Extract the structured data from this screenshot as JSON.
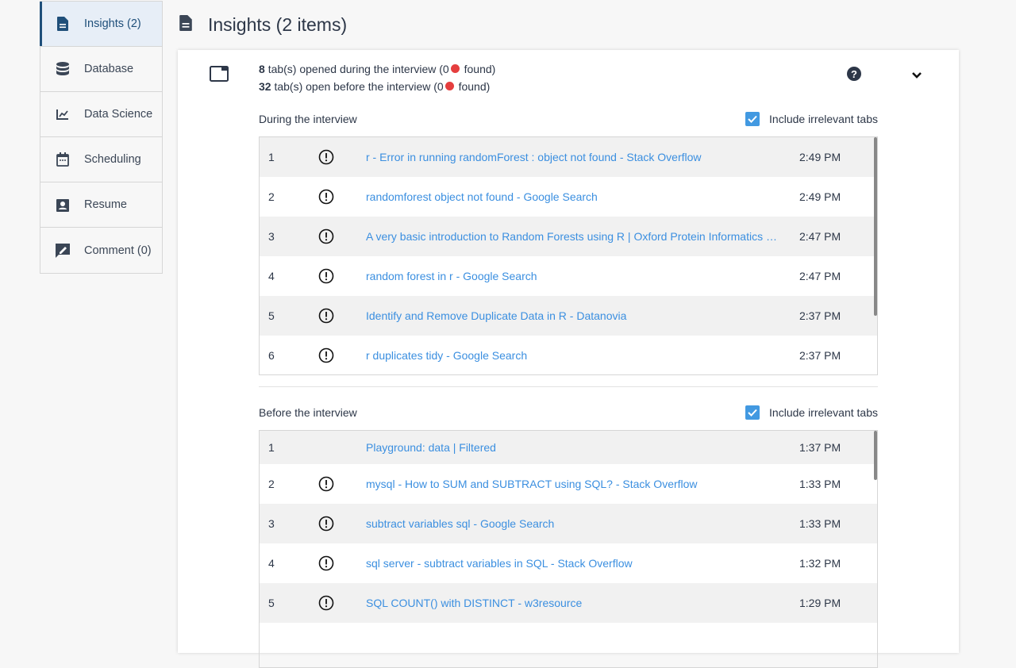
{
  "sidebar": {
    "items": [
      {
        "label": "Insights (2)",
        "icon": "file-icon"
      },
      {
        "label": "Database",
        "icon": "database-icon"
      },
      {
        "label": "Data Science",
        "icon": "chart-line-icon"
      },
      {
        "label": "Scheduling",
        "icon": "calendar-icon"
      },
      {
        "label": "Resume",
        "icon": "id-badge-icon"
      },
      {
        "label": "Comment (0)",
        "icon": "comment-edit-icon"
      }
    ]
  },
  "header": {
    "title": "Insights (2 items)"
  },
  "summary": {
    "during_count": "8",
    "during_text": "tab(s) opened during the interview (0",
    "during_found": "found)",
    "before_count": "32",
    "before_text": "tab(s) open before the interview (0",
    "before_found": "found)"
  },
  "during": {
    "label": "During the interview",
    "checkbox_label": "Include irrelevant tabs",
    "checked": true,
    "rows": [
      {
        "n": "1",
        "title": "r - Error in running randomForest : object not found - Stack Overflow",
        "time": "2:49 PM",
        "flag": true
      },
      {
        "n": "2",
        "title": "randomforest object not found - Google Search",
        "time": "2:49 PM",
        "flag": true
      },
      {
        "n": "3",
        "title": "A very basic introduction to Random Forests using R | Oxford Protein Informatics Group",
        "time": "2:47 PM",
        "flag": true
      },
      {
        "n": "4",
        "title": "random forest in r - Google Search",
        "time": "2:47 PM",
        "flag": true
      },
      {
        "n": "5",
        "title": "Identify and Remove Duplicate Data in R - Datanovia",
        "time": "2:37 PM",
        "flag": true
      },
      {
        "n": "6",
        "title": "r duplicates tidy - Google Search",
        "time": "2:37 PM",
        "flag": true
      }
    ]
  },
  "before": {
    "label": "Before the interview",
    "checkbox_label": "Include irrelevant tabs",
    "checked": true,
    "rows": [
      {
        "n": "1",
        "title": "Playground: data | Filtered",
        "time": "1:37 PM",
        "flag": false
      },
      {
        "n": "2",
        "title": "mysql - How to SUM and SUBTRACT using SQL? - Stack Overflow",
        "time": "1:33 PM",
        "flag": true
      },
      {
        "n": "3",
        "title": "subtract variables sql - Google Search",
        "time": "1:33 PM",
        "flag": true
      },
      {
        "n": "4",
        "title": "sql server - subtract variables in SQL - Stack Overflow",
        "time": "1:32 PM",
        "flag": true
      },
      {
        "n": "5",
        "title": "SQL COUNT() with DISTINCT - w3resource",
        "time": "1:29 PM",
        "flag": true
      }
    ]
  },
  "colors": {
    "link": "#3b8fe0",
    "accent": "#1f4f7a",
    "checkbox": "#4299e1",
    "bug": "#e53e3e"
  }
}
